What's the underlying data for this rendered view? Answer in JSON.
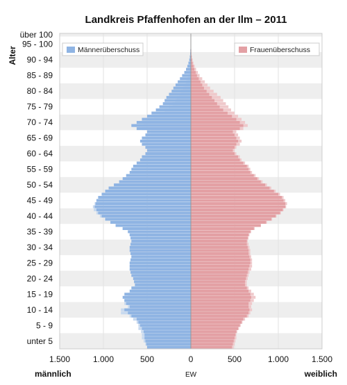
{
  "chart_data": {
    "type": "population-pyramid",
    "title": "Landkreis Pfaffenhofen an der Ilm – 2011",
    "ylabel": "Alter",
    "xlabel": "EW",
    "left_label": "männlich",
    "right_label": "weiblich",
    "x_ticks": [
      {
        "value": -1500,
        "label": "1.500"
      },
      {
        "value": -1000,
        "label": "1.000"
      },
      {
        "value": -500,
        "label": "500"
      },
      {
        "value": 0,
        "label": "0"
      },
      {
        "value": 500,
        "label": "500"
      },
      {
        "value": 1000,
        "label": "1.000"
      },
      {
        "value": 1500,
        "label": "1.500"
      }
    ],
    "xlim": [
      -1500,
      1500
    ],
    "age_labels": [
      {
        "age": 2,
        "label": "unter 5"
      },
      {
        "age": 7,
        "label": "5 - 9"
      },
      {
        "age": 12,
        "label": "10 - 14"
      },
      {
        "age": 17,
        "label": "15 - 19"
      },
      {
        "age": 22,
        "label": "20 - 24"
      },
      {
        "age": 27,
        "label": "25 - 29"
      },
      {
        "age": 32,
        "label": "30 - 34"
      },
      {
        "age": 37,
        "label": "35 - 39"
      },
      {
        "age": 42,
        "label": "40 - 44"
      },
      {
        "age": 47,
        "label": "45 - 49"
      },
      {
        "age": 52,
        "label": "50 - 54"
      },
      {
        "age": 57,
        "label": "55 - 59"
      },
      {
        "age": 62,
        "label": "60 - 64"
      },
      {
        "age": 67,
        "label": "65 - 69"
      },
      {
        "age": 72,
        "label": "70 - 74"
      },
      {
        "age": 77,
        "label": "75 - 79"
      },
      {
        "age": 82,
        "label": "80 - 84"
      },
      {
        "age": 87,
        "label": "85 - 89"
      },
      {
        "age": 92,
        "label": "90 - 94"
      },
      {
        "age": 97,
        "label": "95 - 100"
      },
      {
        "age": 100,
        "label": "über 100"
      }
    ],
    "legend": {
      "male_surplus": "Männerüberschuss",
      "female_surplus": "Frauenüberschuss"
    },
    "colors": {
      "male": "#8fb4e3",
      "male_surplus": "#c7d9ef",
      "female": "#e3a0a4",
      "female_surplus": "#efc9cb",
      "band": "#eeeeee",
      "center_line": "#999999"
    },
    "male": [
      500,
      510,
      520,
      530,
      530,
      540,
      560,
      580,
      600,
      620,
      680,
      720,
      760,
      700,
      740,
      760,
      780,
      760,
      700,
      680,
      640,
      650,
      660,
      680,
      690,
      700,
      700,
      700,
      690,
      680,
      690,
      700,
      700,
      690,
      680,
      690,
      700,
      720,
      780,
      860,
      920,
      980,
      1020,
      1060,
      1080,
      1100,
      1090,
      1080,
      1060,
      1020,
      980,
      940,
      880,
      820,
      780,
      740,
      700,
      680,
      660,
      620,
      580,
      560,
      520,
      500,
      520,
      560,
      580,
      560,
      520,
      500,
      620,
      680,
      620,
      560,
      500,
      450,
      400,
      360,
      320,
      300,
      280,
      250,
      220,
      200,
      175,
      150,
      125,
      100,
      75,
      55,
      40,
      28,
      18,
      12,
      8,
      6,
      4,
      3,
      2,
      1,
      1,
      0
    ],
    "female": [
      470,
      480,
      490,
      500,
      510,
      520,
      540,
      560,
      580,
      600,
      640,
      660,
      670,
      660,
      660,
      680,
      690,
      680,
      660,
      640,
      620,
      620,
      630,
      640,
      650,
      660,
      670,
      680,
      680,
      670,
      660,
      660,
      650,
      640,
      640,
      650,
      660,
      680,
      720,
      800,
      860,
      920,
      970,
      1020,
      1050,
      1080,
      1080,
      1060,
      1040,
      1000,
      950,
      900,
      850,
      800,
      760,
      720,
      680,
      660,
      640,
      600,
      560,
      540,
      500,
      480,
      500,
      520,
      540,
      520,
      500,
      480,
      560,
      600,
      560,
      520,
      470,
      420,
      370,
      330,
      300,
      270,
      240,
      210,
      180,
      150,
      130,
      110,
      90,
      70,
      55,
      40,
      30,
      20,
      13,
      8,
      5,
      4,
      3,
      2,
      1,
      1,
      0,
      0
    ],
    "male_surplus": [
      500,
      520,
      540,
      560,
      560,
      570,
      600,
      600,
      620,
      660,
      700,
      800,
      800,
      720,
      760,
      760,
      720,
      720,
      680,
      660,
      580,
      590,
      600,
      640,
      660,
      680,
      690,
      690,
      690,
      680,
      680,
      680,
      690,
      680,
      660,
      670,
      700,
      720,
      780,
      860,
      920,
      980,
      1040,
      1080,
      1110,
      1120,
      1100,
      1080,
      1060,
      1020,
      980,
      920,
      880,
      820,
      760,
      720,
      680,
      660,
      640,
      600,
      560,
      540,
      500,
      480,
      500,
      520,
      540,
      500,
      470,
      460,
      560,
      600,
      540,
      480,
      420,
      360,
      300,
      250,
      210,
      180,
      160,
      130,
      110,
      90,
      70,
      55,
      40,
      30,
      20,
      14,
      10,
      6,
      4,
      3,
      2,
      1,
      1,
      0,
      0,
      0,
      0,
      0
    ],
    "female_surplus": [
      490,
      500,
      510,
      520,
      520,
      530,
      550,
      570,
      590,
      620,
      660,
      680,
      700,
      690,
      700,
      720,
      740,
      720,
      690,
      660,
      640,
      640,
      650,
      660,
      670,
      690,
      700,
      700,
      700,
      690,
      680,
      680,
      670,
      660,
      650,
      660,
      670,
      690,
      730,
      800,
      870,
      930,
      980,
      1030,
      1060,
      1090,
      1100,
      1080,
      1060,
      1020,
      970,
      920,
      870,
      820,
      780,
      740,
      700,
      680,
      660,
      620,
      580,
      560,
      520,
      500,
      520,
      560,
      580,
      560,
      540,
      520,
      600,
      650,
      620,
      580,
      540,
      500,
      460,
      430,
      400,
      370,
      340,
      300,
      260,
      220,
      190,
      160,
      130,
      100,
      80,
      60,
      44,
      30,
      20,
      13,
      8,
      6,
      4,
      3,
      2,
      1,
      0,
      0
    ]
  }
}
